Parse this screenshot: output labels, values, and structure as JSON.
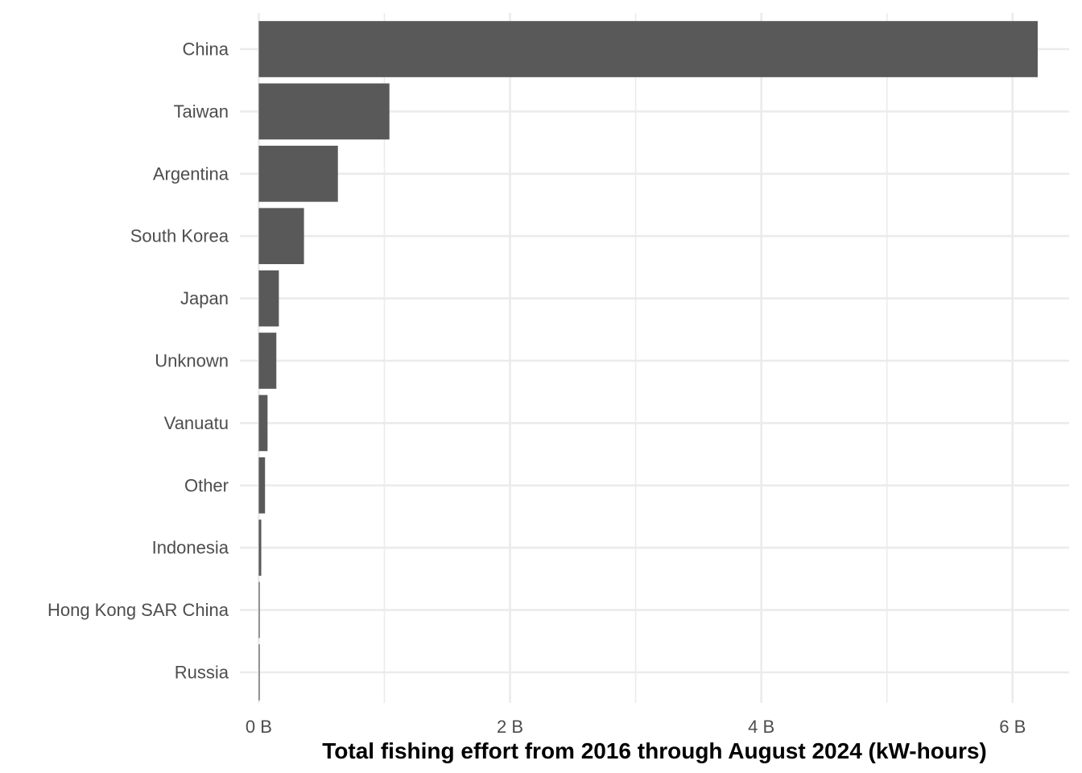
{
  "chart_data": {
    "type": "bar",
    "orientation": "horizontal",
    "categories": [
      "China",
      "Taiwan",
      "Argentina",
      "South Korea",
      "Japan",
      "Unknown",
      "Vanuatu",
      "Other",
      "Indonesia",
      "Hong Kong SAR China",
      "Russia"
    ],
    "values": [
      6200000000,
      1040000000,
      630000000,
      360000000,
      160000000,
      140000000,
      70000000,
      50000000,
      20000000,
      5000000,
      5000000
    ],
    "xlabel": "Total fishing effort from 2016 through August 2024 (kW-hours)",
    "ylabel": "",
    "xlim": [
      -150000000,
      6450000000
    ],
    "xticks": [
      0,
      2000000000,
      4000000000,
      6000000000
    ],
    "xtick_labels": [
      "0 B",
      "2 B",
      "4 B",
      "6 B"
    ],
    "grid": true,
    "bar_color": "#595959",
    "grid_color": "#ebebeb",
    "text_color": "#4d4d4d"
  }
}
